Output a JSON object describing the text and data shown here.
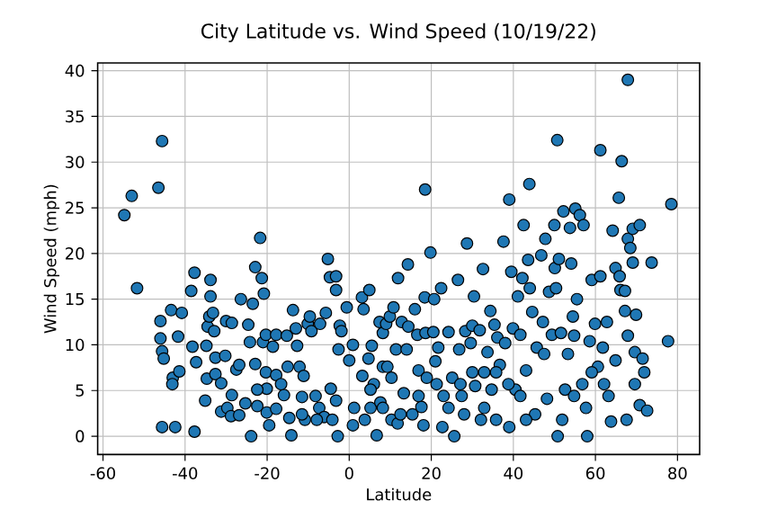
{
  "chart_data": {
    "type": "scatter",
    "title": "City Latitude vs. Wind Speed (10/19/22)",
    "xlabel": "Latitude",
    "ylabel": "Wind Speed (mph)",
    "xlim": [
      -61.3,
      85.4
    ],
    "ylim": [
      -2,
      40.85
    ],
    "xticks": [
      -60,
      -40,
      -20,
      0,
      20,
      40,
      60,
      80
    ],
    "yticks": [
      0,
      5,
      10,
      15,
      20,
      25,
      30,
      35,
      40
    ],
    "grid": true,
    "marker": "circle",
    "series": [
      {
        "color": "#1f77b4",
        "x": [
          -54.8,
          -53.0,
          -51.7,
          -46.5,
          -45.6,
          -46.0,
          -46.0,
          -45.6,
          -45.2,
          -45.6,
          -42.4,
          -43.4,
          -43.0,
          -43.1,
          -41.7,
          -41.4,
          -40.8,
          -38.5,
          -37.7,
          -38.2,
          -37.3,
          -37.7,
          -34.5,
          -34.8,
          -34.1,
          -33.8,
          -33.8,
          -34.7,
          -35.1,
          -33.2,
          -32.9,
          -32.6,
          -32.6,
          -31.2,
          -30.2,
          -30.0,
          -28.6,
          -31.2,
          -29.7,
          -28.8,
          -28.6,
          -27.5,
          -26.8,
          -26.4,
          -26.8,
          -25.3,
          -24.6,
          -24.2,
          -23.5,
          -22.9,
          -23.9,
          -22.9,
          -22.4,
          -21.7,
          -21.3,
          -20.8,
          -21.0,
          -20.3,
          -20.3,
          -20.1,
          -20.1,
          -19.5,
          -18.6,
          -17.8,
          -17.8,
          -17.8,
          -15.9,
          -15.2,
          -15.0,
          -14.6,
          -14.1,
          -13.7,
          -13.0,
          -12.7,
          -12.1,
          -11.1,
          -11.5,
          -10.8,
          -10.1,
          -9.6,
          -9.2,
          -8.2,
          -7.1,
          -7.3,
          -6.1,
          -5.7,
          -5.2,
          -4.7,
          -4.5,
          -4.1,
          -3.2,
          -3.2,
          -3.2,
          -2.6,
          -2.3,
          -2.8,
          -1.9,
          -0.6,
          0,
          0.9,
          0.9,
          1.2,
          3.1,
          3.5,
          3.2,
          3.8,
          4.7,
          4.9,
          5.2,
          5.5,
          6.0,
          6.7,
          7.4,
          7.6,
          8.2,
          8.2,
          9.0,
          9.3,
          9.9,
          10.3,
          10.3,
          10.8,
          11.4,
          11.9,
          11.8,
          12.8,
          13.3,
          14.0,
          14.3,
          14.4,
          15.4,
          16.0,
          16.6,
          16.9,
          17.6,
          18.1,
          18.5,
          18.4,
          18.6,
          18.9,
          19.8,
          20.7,
          20.5,
          21.0,
          21.7,
          22.4,
          22.7,
          23.0,
          24.2,
          25.1,
          25.6,
          26.5,
          26.8,
          27.4,
          28.0,
          28.3,
          28.7,
          29.6,
          30.0,
          30.4,
          30.7,
          31.8,
          32.1,
          32.6,
          32.9,
          33.7,
          34.4,
          34.7,
          35.4,
          35.8,
          36.1,
          36.7,
          37.6,
          38.0,
          39.0,
          39.0,
          39.5,
          39.9,
          40.5,
          41.1,
          41.7,
          42.2,
          42.5,
          43.1,
          43.6,
          43.9,
          44.0,
          44.6,
          45.3,
          45.7,
          46.8,
          47.2,
          47.8,
          48.2,
          48.7,
          49.4,
          50.0,
          50.1,
          50.7,
          50.4,
          50.8,
          51.1,
          51.6,
          52.2,
          52.6,
          53.3,
          53.8,
          54.1,
          54.5,
          55.1,
          55.5,
          56.2,
          56.8,
          57.1,
          57.7,
          58.0,
          58.6,
          59.1,
          59.9,
          60.6,
          61.2,
          61.2,
          61.8,
          62.8,
          63.2,
          63.8,
          64.2,
          64.9,
          65.7,
          65.9,
          66.1,
          66.4,
          67.2,
          67.2,
          67.6,
          67.9,
          67.9,
          68.5,
          69.1,
          69.1,
          69.6,
          69.9,
          70.8,
          70.8,
          71.5,
          71.9,
          72.6,
          73.7,
          77.7,
          78.5,
          51.9,
          54.8,
          59.1,
          62.1,
          64.9,
          67.9,
          69.6,
          54.8,
          47.5,
          43.1,
          41.7,
          38.8,
          35.8,
          32.9,
          30.0,
          27.1,
          24.2,
          21.3,
          16.9,
          12.5,
          8.2,
          5.2,
          -7.9,
          -11.5,
          -16.6,
          -22.4
        ],
        "values": [
          24.2,
          26.3,
          16.2,
          27.2,
          32.3,
          12.6,
          10.7,
          9.3,
          8.5,
          1.0,
          1.0,
          13.8,
          6.4,
          5.7,
          10.9,
          7.1,
          13.5,
          15.9,
          17.9,
          9.8,
          8.1,
          0.5,
          12.0,
          9.9,
          13.1,
          17.1,
          15.3,
          6.3,
          3.9,
          13.5,
          11.5,
          8.6,
          6.8,
          5.8,
          8.8,
          12.6,
          12.4,
          2.7,
          3.1,
          2.2,
          4.5,
          7.3,
          7.8,
          15.0,
          2.3,
          3.6,
          12.2,
          10.3,
          14.5,
          18.5,
          0,
          7.9,
          3.3,
          21.7,
          17.3,
          15.6,
          10.3,
          11.1,
          7.0,
          5.2,
          2.6,
          1.2,
          9.8,
          11.1,
          6.7,
          3.0,
          4.5,
          11.0,
          7.6,
          2.0,
          0.1,
          13.8,
          11.8,
          9.9,
          7.6,
          6.6,
          4.3,
          1.8,
          12.3,
          13.1,
          11.5,
          4.4,
          12.3,
          3.1,
          2.1,
          13.5,
          19.4,
          17.4,
          5.2,
          1.8,
          17.5,
          16.0,
          3.9,
          9.5,
          12.1,
          0,
          11.5,
          14.1,
          8.3,
          10.0,
          1.2,
          3.1,
          15.2,
          13.9,
          6.6,
          1.8,
          8.5,
          16.0,
          3.1,
          9.9,
          5.7,
          0.1,
          12.5,
          3.7,
          11.3,
          7.6,
          12.3,
          7.6,
          13.1,
          6.4,
          1.8,
          14.1,
          9.5,
          17.3,
          1.4,
          12.5,
          4.7,
          9.5,
          18.8,
          12.0,
          2.4,
          13.9,
          11.1,
          7.2,
          3.2,
          1.2,
          27.0,
          15.2,
          11.3,
          6.4,
          20.1,
          15.0,
          11.4,
          8.2,
          9.7,
          16.2,
          1.0,
          4.4,
          11.4,
          6.4,
          0,
          17.1,
          9.5,
          4.4,
          2.4,
          11.5,
          21.1,
          10.2,
          12.1,
          15.3,
          5.5,
          11.6,
          1.8,
          18.3,
          7.0,
          9.2,
          13.7,
          5.1,
          12.2,
          1.8,
          10.8,
          7.8,
          21.3,
          10.2,
          25.9,
          1.0,
          18.0,
          11.8,
          5.1,
          15.3,
          11.1,
          17.3,
          23.1,
          7.2,
          19.3,
          27.6,
          16.2,
          13.6,
          2.4,
          9.7,
          19.8,
          12.5,
          21.6,
          4.1,
          15.8,
          11.1,
          23.1,
          18.4,
          32.4,
          16.2,
          0,
          19.4,
          11.3,
          24.6,
          5.1,
          9.0,
          22.8,
          18.9,
          13.1,
          24.9,
          15.0,
          24.2,
          5.7,
          23.1,
          3.1,
          0,
          10.4,
          17.1,
          12.3,
          7.6,
          31.3,
          17.5,
          9.7,
          12.5,
          4.4,
          1.6,
          22.5,
          18.4,
          26.1,
          17.5,
          16.0,
          30.1,
          15.9,
          13.7,
          1.8,
          39.0,
          21.6,
          20.6,
          22.7,
          19.0,
          9.2,
          13.3,
          23.1,
          3.4,
          8.5,
          7.0,
          2.8,
          19.0,
          10.4,
          25.4,
          1.8,
          11.0,
          7.0,
          5.7,
          8.3,
          11.0,
          5.7,
          4.4,
          9.0,
          1.8,
          4.4,
          5.7,
          7.0,
          3.1,
          7.0,
          5.7,
          3.1,
          5.7,
          4.4,
          2.4,
          3.1,
          5.1,
          1.8,
          2.4,
          5.7,
          5.1
        ]
      }
    ]
  }
}
